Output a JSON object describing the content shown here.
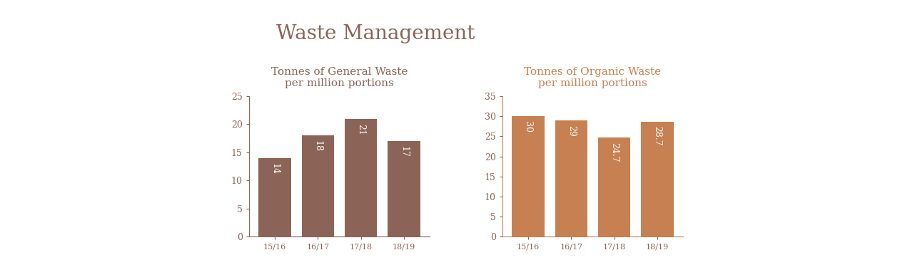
{
  "title": "Waste Management",
  "chart_data": [
    {
      "type": "bar",
      "title": "Tonnes of General Waste\nper million portions",
      "categories": [
        "15/16",
        "16/17",
        "17/18",
        "18/19"
      ],
      "values": [
        14,
        18,
        21,
        17
      ],
      "color": "#8c6457",
      "ylim": [
        0,
        25
      ],
      "yticks": [
        0,
        5,
        10,
        15,
        20,
        25
      ],
      "grid": false,
      "data_labels": true
    },
    {
      "type": "bar",
      "title": "Tonnes of Organic Waste\nper million portions",
      "categories": [
        "15/16",
        "16/17",
        "17/18",
        "18/19"
      ],
      "values": [
        30,
        29,
        24.7,
        28.7
      ],
      "color": "#c68052",
      "ylim": [
        0,
        35
      ],
      "yticks": [
        0,
        5,
        10,
        15,
        20,
        25,
        30,
        35
      ],
      "grid": false,
      "data_labels": true
    }
  ]
}
